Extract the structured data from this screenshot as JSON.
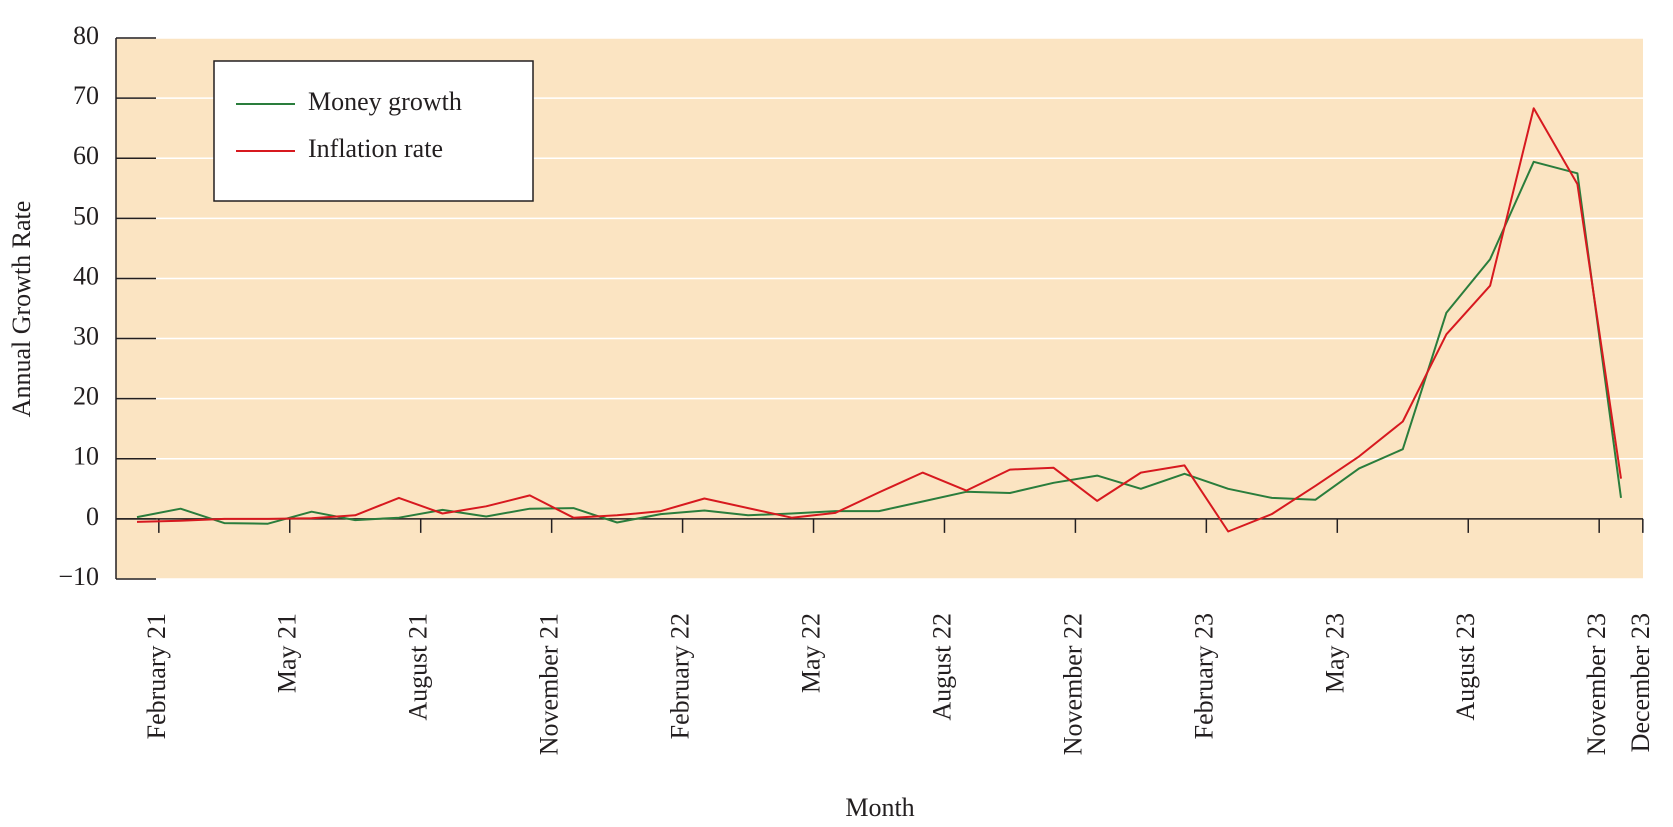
{
  "chart_data": {
    "type": "line",
    "x_label": "Month",
    "y_label": "Annual Growth Rate",
    "categories": [
      "February 21",
      null,
      null,
      "May 21",
      null,
      null,
      "August 21",
      null,
      null,
      "November 21",
      null,
      null,
      "February 22",
      null,
      null,
      "May 22",
      null,
      null,
      "August 22",
      null,
      null,
      "November 22",
      null,
      null,
      "February 23",
      null,
      null,
      "May 23",
      null,
      null,
      "August 23",
      null,
      null,
      "November 23",
      "December 23"
    ],
    "series": [
      {
        "name": "Money growth",
        "color": "#2a7d3c",
        "values": [
          0.3,
          1.7,
          -0.7,
          -0.8,
          1.2,
          -0.2,
          0.2,
          1.5,
          0.4,
          1.7,
          1.8,
          -0.6,
          0.8,
          1.4,
          0.6,
          0.9,
          1.3,
          1.3,
          2.9,
          4.5,
          4.3,
          6.0,
          7.2,
          5.0,
          7.5,
          5.0,
          3.5,
          3.2,
          8.4,
          11.6,
          34.3,
          43.2,
          59.4,
          57.5,
          3.5
        ]
      },
      {
        "name": "Inflation rate",
        "color": "#d7191f",
        "values": [
          -0.5,
          -0.3,
          0,
          0,
          0.1,
          0.6,
          3.5,
          0.9,
          2.1,
          3.9,
          0.2,
          0.6,
          1.3,
          3.4,
          1.8,
          0.2,
          1.0,
          4.4,
          7.7,
          4.7,
          8.2,
          8.5,
          3.0,
          7.7,
          8.9,
          -2.1,
          0.8,
          5.5,
          10.4,
          16.2,
          30.7,
          38.8,
          68.3,
          55.7,
          6.7
        ]
      }
    ],
    "ylim": [
      -10,
      80
    ],
    "yticks": [
      {
        "value": -10,
        "label": "−10"
      },
      0,
      10,
      20,
      30,
      40,
      50,
      60,
      70,
      80
    ],
    "grid": true,
    "legend": "upper left",
    "background": "#fbe4c2"
  }
}
